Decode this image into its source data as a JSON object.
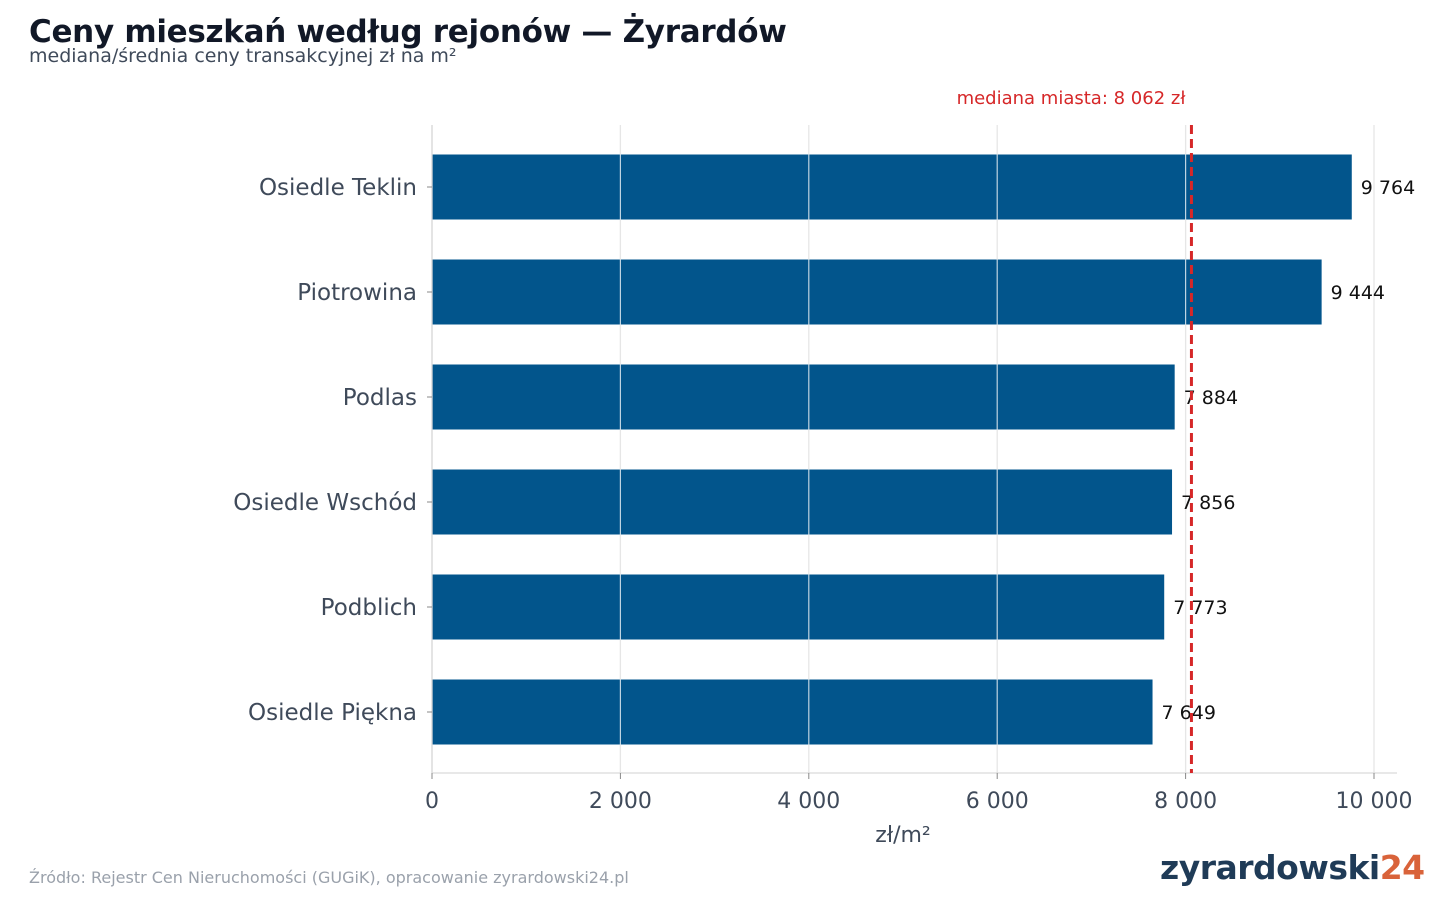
{
  "title": "Ceny mieszkań według rejonów — Żyrardów",
  "subtitle": "mediana/średnia ceny transakcyjnej zł na m²",
  "source": "Źródło: Rejestr Cen Nieruchomości (GUGiK), opracowanie zyrardowski24.pl",
  "logo": {
    "main": "zyrardowski",
    "accent": "24"
  },
  "colors": {
    "bar": "#02558c",
    "reference_line": "#d62728",
    "grid": "#e6e6e6",
    "axis_text": "#3f4a5a",
    "value_text": "#111111"
  },
  "chart_data": {
    "type": "bar",
    "orientation": "horizontal",
    "categories": [
      "Osiedle Teklin",
      "Piotrowina",
      "Podlas",
      "Osiedle Wschód",
      "Podblich",
      "Osiedle Piękna"
    ],
    "values": [
      9764,
      9444,
      7884,
      7856,
      7773,
      7649
    ],
    "value_labels": [
      "9 764",
      "9 444",
      "7 884",
      "7 856",
      "7 773",
      "7 649"
    ],
    "xlabel": "zł/m²",
    "xlim": [
      0,
      10000
    ],
    "xticks": [
      0,
      2000,
      4000,
      6000,
      8000,
      10000
    ],
    "xtick_labels": [
      "0",
      "2 000",
      "4 000",
      "6 000",
      "8 000",
      "10 000"
    ],
    "reference_line": {
      "value": 8062,
      "label": "mediana miasta: 8 062 zł",
      "style": "dashed"
    },
    "grid": "vertical"
  }
}
